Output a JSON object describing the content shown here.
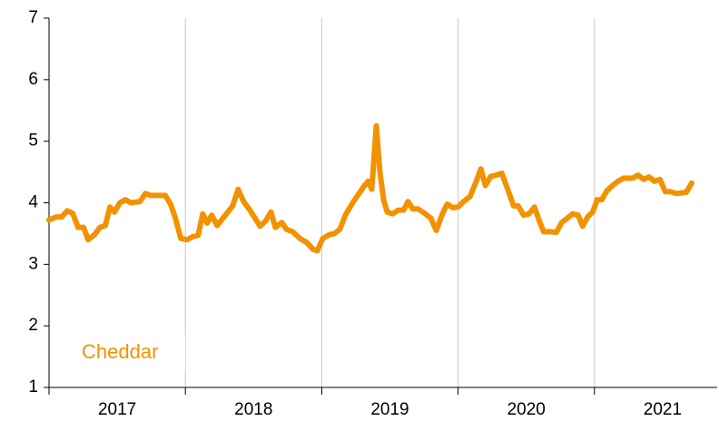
{
  "chart_data": {
    "type": "line",
    "x": [
      2017.0,
      2017.053,
      2017.093,
      2017.133,
      2017.173,
      2017.213,
      2017.253,
      2017.287,
      2017.333,
      2017.373,
      2017.413,
      2017.447,
      2017.48,
      2017.52,
      2017.56,
      2017.6,
      2017.667,
      2017.707,
      2017.747,
      2017.853,
      2017.893,
      2017.927,
      2017.967,
      2018.013,
      2018.053,
      2018.093,
      2018.127,
      2018.16,
      2018.193,
      2018.233,
      2018.287,
      2018.347,
      2018.387,
      2018.427,
      2018.473,
      2018.547,
      2018.587,
      2018.627,
      2018.66,
      2018.707,
      2018.74,
      2018.787,
      2018.84,
      2018.893,
      2018.933,
      2018.967,
      2019.007,
      2019.053,
      2019.093,
      2019.133,
      2019.173,
      2019.227,
      2019.273,
      2019.32,
      2019.34,
      2019.367,
      2019.4,
      2019.427,
      2019.453,
      2019.48,
      2019.52,
      2019.56,
      2019.6,
      2019.633,
      2019.667,
      2019.707,
      2019.76,
      2019.8,
      2019.84,
      2019.887,
      2019.92,
      2019.96,
      2020.0,
      2020.04,
      2020.087,
      2020.133,
      2020.167,
      2020.2,
      2020.24,
      2020.28,
      2020.32,
      2020.367,
      2020.407,
      2020.44,
      2020.48,
      2020.52,
      2020.56,
      2020.593,
      2020.627,
      2020.68,
      2020.72,
      2020.76,
      2020.8,
      2020.84,
      2020.88,
      2020.913,
      2020.953,
      2020.987,
      2021.02,
      2021.053,
      2021.093,
      2021.133,
      2021.173,
      2021.213,
      2021.28,
      2021.32,
      2021.36,
      2021.4,
      2021.44,
      2021.48,
      2021.52,
      2021.56,
      2021.6,
      2021.673,
      2021.713
    ],
    "series": [
      {
        "name": "Cheddar",
        "color": "#f39200",
        "values": [
          3.72,
          3.77,
          3.77,
          3.87,
          3.83,
          3.6,
          3.6,
          3.4,
          3.48,
          3.6,
          3.63,
          3.93,
          3.85,
          4.0,
          4.05,
          4.0,
          4.02,
          4.15,
          4.12,
          4.12,
          3.97,
          3.75,
          3.42,
          3.4,
          3.45,
          3.47,
          3.82,
          3.67,
          3.8,
          3.63,
          3.78,
          3.95,
          4.22,
          4.02,
          3.88,
          3.62,
          3.7,
          3.85,
          3.6,
          3.68,
          3.57,
          3.53,
          3.42,
          3.35,
          3.25,
          3.22,
          3.42,
          3.48,
          3.5,
          3.57,
          3.8,
          4.0,
          4.15,
          4.3,
          4.35,
          4.22,
          5.25,
          4.5,
          4.05,
          3.85,
          3.82,
          3.88,
          3.88,
          4.02,
          3.9,
          3.9,
          3.82,
          3.75,
          3.55,
          3.83,
          3.98,
          3.92,
          3.93,
          4.02,
          4.1,
          4.35,
          4.55,
          4.28,
          4.43,
          4.45,
          4.48,
          4.2,
          3.95,
          3.95,
          3.8,
          3.82,
          3.93,
          3.72,
          3.53,
          3.53,
          3.52,
          3.68,
          3.75,
          3.82,
          3.8,
          3.62,
          3.78,
          3.85,
          4.05,
          4.05,
          4.2,
          4.28,
          4.35,
          4.4,
          4.4,
          4.45,
          4.38,
          4.42,
          4.35,
          4.38,
          4.18,
          4.18,
          4.15,
          4.17,
          4.32
        ]
      }
    ],
    "xlim": [
      2017,
      2021.9
    ],
    "xticks": [
      2017,
      2018,
      2019,
      2020,
      2021
    ],
    "ylim": [
      1,
      7
    ],
    "yticks": [
      1,
      2,
      3,
      4,
      5,
      6,
      7
    ],
    "grid": true
  }
}
